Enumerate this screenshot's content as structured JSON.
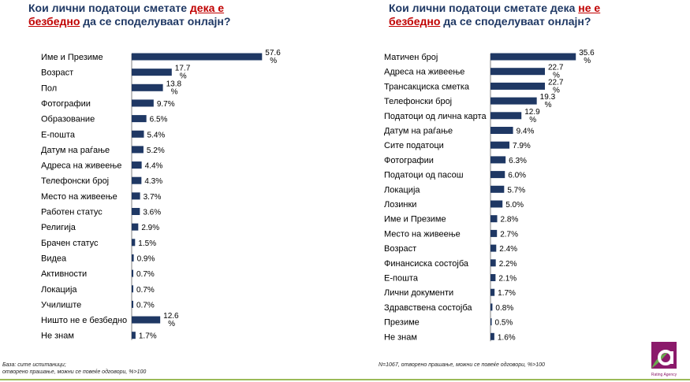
{
  "left": {
    "title": {
      "part1": "Кои лични податоци сметате ",
      "highlight": "дека е безбедно",
      "part2": " да се споделуваат онлајн?"
    },
    "footnote_lines": [
      "База: сите испитаници;",
      "отворено прашање, можни се повеќе одговори, %>100"
    ],
    "chart_data": {
      "type": "bar",
      "orientation": "horizontal",
      "unit": "%",
      "categories": [
        "Име и Презиме",
        "Возраст",
        "Пол",
        "Фотографии",
        "Образование",
        "Е-пошта",
        "Датум на раѓање",
        "Адреса на живеење",
        "Телефонски број",
        "Место на живеење",
        "Работен статус",
        "Религија",
        "Брачен статус",
        "Видеа",
        "Активности",
        "Локација",
        "Училиште",
        "Ништо не е безбедно",
        "Не знам"
      ],
      "values": [
        57.6,
        17.7,
        13.8,
        9.7,
        6.5,
        5.4,
        5.2,
        4.4,
        4.3,
        3.7,
        3.6,
        2.9,
        1.5,
        0.9,
        0.7,
        0.7,
        0.7,
        12.6,
        1.7
      ],
      "bar_color": "#1f3864"
    }
  },
  "right": {
    "title": {
      "part1": "Кои лични податоци сметате дека ",
      "highlight": "не е безбедно",
      "part2": " да се споделуваат онлајн?"
    },
    "footnote_lines": [
      "N=1067, отворено прашање, можни се повеќе одговори, %>100"
    ],
    "chart_data": {
      "type": "bar",
      "orientation": "horizontal",
      "unit": "%",
      "categories": [
        "Матичен број",
        "Адреса на живеење",
        "Трансакциска сметка",
        "Телефонски број",
        "Податоци од лична карта",
        "Датум на раѓање",
        "Сите податоци",
        "Фотографии",
        "Податоци од пасош",
        "Локација",
        "Лозинки",
        "Име и Презиме",
        "Место на живеење",
        "Возраст",
        "Финансиска состојба",
        "Е-пошта",
        "Лични документи",
        "Здравствена состојба",
        "Презиме",
        "Не знам"
      ],
      "values": [
        35.6,
        22.7,
        22.7,
        19.3,
        12.9,
        9.4,
        7.9,
        6.3,
        6.0,
        5.7,
        5.0,
        2.8,
        2.7,
        2.4,
        2.2,
        2.1,
        1.7,
        0.8,
        0.5,
        1.6
      ],
      "bar_color": "#1f3864"
    }
  },
  "logo": {
    "text": "Rating Agency",
    "accent": "#8b1a6b",
    "leaf": "#6aa84f"
  }
}
